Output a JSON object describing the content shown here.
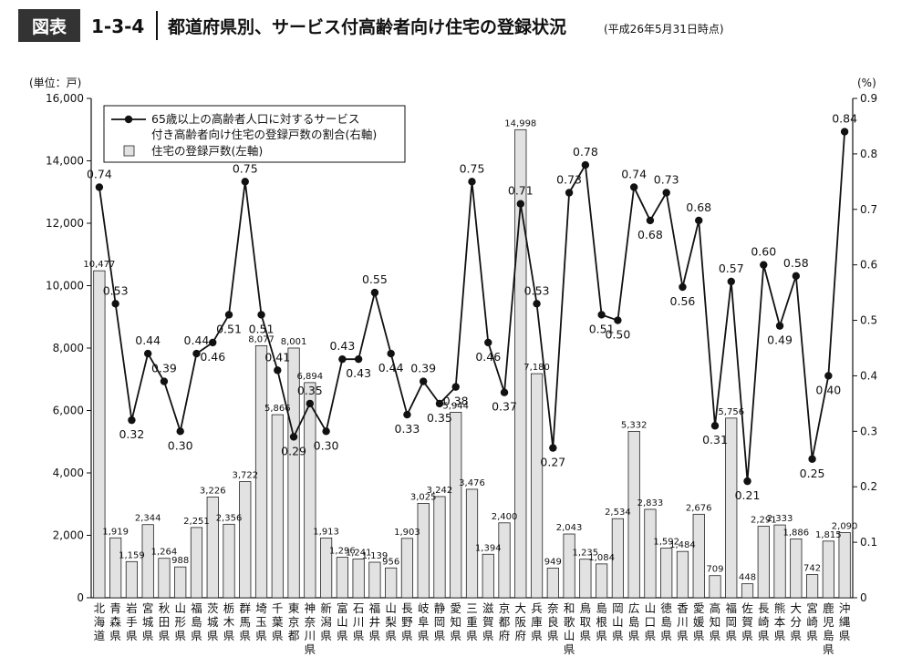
{
  "figure": {
    "badge": "図表",
    "number": "1-3-4",
    "title": "都道府県別、サービス付高齢者向け住宅の登録状況",
    "note": "(平成26年5月31日時点)"
  },
  "colors": {
    "badge_bg": "#333333",
    "bar_fill": "#e2e2e2",
    "bar_stroke": "#222222",
    "line": "#111111"
  },
  "chart_data": {
    "type": "bar",
    "categories": [
      "北海道",
      "青森県",
      "岩手県",
      "宮城県",
      "秋田県",
      "山形県",
      "福島県",
      "茨城県",
      "栃木県",
      "群馬県",
      "埼玉県",
      "千葉県",
      "東京都",
      "神奈川県",
      "新潟県",
      "富山県",
      "石川県",
      "福井県",
      "山梨県",
      "長野県",
      "岐阜県",
      "静岡県",
      "愛知県",
      "三重県",
      "滋賀県",
      "京都府",
      "大阪府",
      "兵庫県",
      "奈良県",
      "和歌山県",
      "鳥取県",
      "島根県",
      "岡山県",
      "広島県",
      "山口県",
      "徳島県",
      "香川県",
      "愛媛県",
      "高知県",
      "福岡県",
      "佐賀県",
      "長崎県",
      "熊本県",
      "大分県",
      "宮崎県",
      "鹿児島県",
      "沖縄県"
    ],
    "series": [
      {
        "name": "住宅の登録戸数(左軸)",
        "type": "bar",
        "axis": "left",
        "values": [
          10477,
          1919,
          1159,
          2344,
          1264,
          988,
          2251,
          3226,
          2356,
          3722,
          8077,
          5866,
          8001,
          6894,
          1913,
          1296,
          1241,
          1139,
          956,
          1903,
          3025,
          3242,
          5944,
          3476,
          1394,
          2400,
          14998,
          7180,
          949,
          2043,
          1235,
          1084,
          2534,
          5332,
          2833,
          1592,
          1484,
          2676,
          709,
          5756,
          448,
          2291,
          2333,
          1886,
          742,
          1815,
          2090
        ],
        "labels": [
          "10,477",
          "1,919",
          "1,159",
          "2,344",
          "1,264",
          "988",
          "2,251",
          "3,226",
          "2,356",
          "3,722",
          "8,077",
          "5,866",
          "8,001",
          "6,894",
          "1,913",
          "1,296",
          "1,241",
          "1,139",
          "956",
          "1,903",
          "3,025",
          "3,242",
          "5,944",
          "3,476",
          "1,394",
          "2,400",
          "14,998",
          "7,180",
          "949",
          "2,043",
          "1,235",
          "1,084",
          "2,534",
          "5,332",
          "2,833",
          "1,592",
          "1,484",
          "2,676",
          "709",
          "5,756",
          "448",
          "2,291",
          "2,333",
          "1,886",
          "742",
          "1,815",
          "2,090"
        ]
      },
      {
        "name": "65歳以上の高齢者人口に対するサービス付き高齢者向け住宅の登録戸数の割合(右軸)",
        "name_lines": [
          "65歳以上の高齢者人口に対するサービス",
          "付き高齢者向け住宅の登録戸数の割合(右軸)"
        ],
        "type": "line",
        "axis": "right",
        "values": [
          0.74,
          0.53,
          0.32,
          0.44,
          0.39,
          0.3,
          0.44,
          0.46,
          0.51,
          0.75,
          0.51,
          0.41,
          0.29,
          0.35,
          0.3,
          0.43,
          0.43,
          0.55,
          0.44,
          0.33,
          0.39,
          0.35,
          0.38,
          0.75,
          0.46,
          0.37,
          0.71,
          0.53,
          0.27,
          0.73,
          0.78,
          0.51,
          0.5,
          0.74,
          0.68,
          0.73,
          0.56,
          0.68,
          0.31,
          0.57,
          0.21,
          0.6,
          0.49,
          0.58,
          0.25,
          0.4,
          0.84
        ],
        "labels": [
          "0.74",
          "0.53",
          "0.32",
          "0.44",
          "0.39",
          "0.30",
          "0.44",
          "0.46",
          "0.51",
          "0.75",
          "0.51",
          "0.41",
          "0.29",
          "0.35",
          "0.30",
          "0.43",
          "0.43",
          "0.55",
          "0.44",
          "0.33",
          "0.39",
          "0.35",
          "0.38",
          "0.75",
          "0.46",
          "0.37",
          "0.71",
          "0.53",
          "0.27",
          "0.73",
          "0.78",
          "0.51",
          "0.50",
          "0.74",
          "0.68",
          "0.73",
          "0.56",
          "0.68",
          "0.31",
          "0.57",
          "0.21",
          "0.60",
          "0.49",
          "0.58",
          "0.25",
          "0.40",
          "0.84"
        ]
      }
    ],
    "y_left": {
      "unit": "(単位：戸)",
      "ylim": [
        0,
        16000
      ],
      "ticks": [
        "0",
        "2,000",
        "4,000",
        "6,000",
        "8,000",
        "10,000",
        "12,000",
        "14,000",
        "16,000"
      ]
    },
    "y_right": {
      "unit": "(%)",
      "ylim": [
        0,
        0.9
      ],
      "ticks": [
        "0",
        "0.1",
        "0.2",
        "0.3",
        "0.4",
        "0.5",
        "0.6",
        "0.7",
        "0.8",
        "0.9"
      ]
    },
    "grid": false,
    "legend_position": "top-left"
  }
}
